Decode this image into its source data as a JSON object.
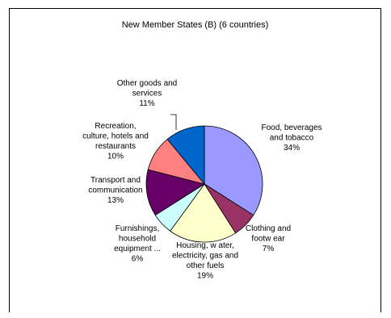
{
  "chart_data": {
    "type": "pie",
    "title": "New Member States (B) (6 countries)",
    "slices": [
      {
        "label": [
          "Food, beverages",
          "and tobacco"
        ],
        "value": 34,
        "value_label": "34%",
        "color": "#9999ff"
      },
      {
        "label": [
          "Clothing and",
          "footw ear"
        ],
        "value": 7,
        "value_label": "7%",
        "color": "#993366"
      },
      {
        "label": [
          "Housing, w ater,",
          "electricity, gas and",
          "other fuels"
        ],
        "value": 19,
        "value_label": "19%",
        "color": "#ffffcc"
      },
      {
        "label": [
          "Furnishings,",
          "household",
          "equipment ..."
        ],
        "value": 6,
        "value_label": "6%",
        "color": "#ccffff"
      },
      {
        "label": [
          "Transport and",
          "communication"
        ],
        "value": 13,
        "value_label": "13%",
        "color": "#660066"
      },
      {
        "label": [
          "Recreation,",
          "culture, hotels and",
          "restaurants"
        ],
        "value": 10,
        "value_label": "10%",
        "color": "#ff8080"
      },
      {
        "label": [
          "Other goods and",
          "services"
        ],
        "value": 11,
        "value_label": "11%",
        "color": "#0066cc"
      }
    ]
  }
}
